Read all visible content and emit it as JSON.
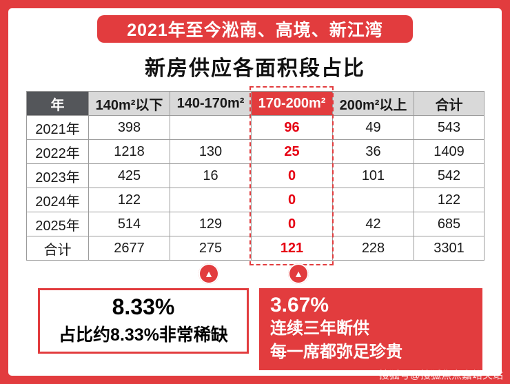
{
  "frame": {
    "watermark": "搜狐号@搜狐焦点嘉峪关站"
  },
  "banner": {
    "label": "2021年至今淞南、高境、新江湾"
  },
  "title": {
    "label": "新房供应各面积段占比"
  },
  "chart_data": {
    "type": "table",
    "title": "新房供应各面积段占比",
    "columns": [
      "年",
      "140m²以下",
      "140-170m²",
      "170-200m²",
      "200m²以上",
      "合计"
    ],
    "highlight_column": "170-200m²",
    "highlight_column_index": 3,
    "rows": [
      {
        "label": "2021年",
        "values": [
          "398",
          "",
          "96",
          "49",
          "543"
        ]
      },
      {
        "label": "2022年",
        "values": [
          "1218",
          "130",
          "25",
          "36",
          "1409"
        ]
      },
      {
        "label": "2023年",
        "values": [
          "425",
          "16",
          "0",
          "101",
          "542"
        ]
      },
      {
        "label": "2024年",
        "values": [
          "122",
          "",
          "0",
          "",
          "122"
        ]
      },
      {
        "label": "2025年",
        "values": [
          "514",
          "129",
          "0",
          "42",
          "685"
        ]
      },
      {
        "label": "合计",
        "values": [
          "2677",
          "275",
          "121",
          "228",
          "3301"
        ]
      }
    ],
    "annotations": {
      "left_marker": "up-triangle",
      "right_marker": "up-triangle",
      "left_callout": {
        "percent": "8.33%",
        "text": "占比约8.33%非常稀缺"
      },
      "right_callout": {
        "percent": "3.67%",
        "line1": "连续三年断供",
        "line2": "每一席都弥足珍贵"
      }
    }
  },
  "colors": {
    "frame_red": "#e23c3e",
    "highlight_red_text": "#e60012",
    "header_dark_gray": "#54565a",
    "header_light_gray": "#d9d9d9"
  }
}
